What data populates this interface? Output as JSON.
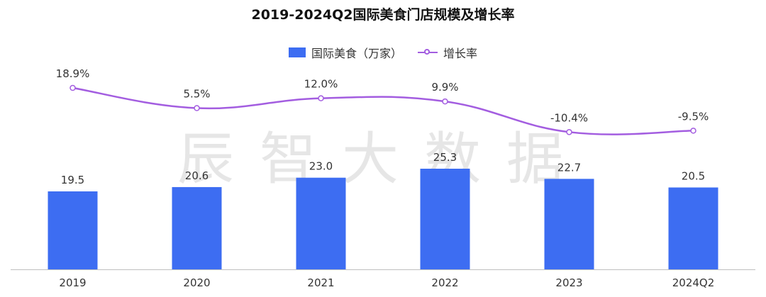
{
  "watermark": "辰智大数据",
  "colors": {
    "bar": "#3d6df2",
    "line": "#a35de0",
    "axis": "#bfbfbf"
  },
  "chart_data": {
    "type": "bar",
    "title": "2019-2024Q2国际美食门店规模及增长率",
    "categories": [
      "2019",
      "2020",
      "2021",
      "2022",
      "2023",
      "2024Q2"
    ],
    "series": [
      {
        "name": "国际美食（万家）",
        "type": "bar",
        "values": [
          19.5,
          20.6,
          23.0,
          25.3,
          22.7,
          20.5
        ],
        "labels": [
          "19.5",
          "20.6",
          "23.0",
          "25.3",
          "22.7",
          "20.5"
        ]
      },
      {
        "name": "增长率",
        "type": "line",
        "values": [
          18.9,
          5.5,
          12.0,
          9.9,
          -10.4,
          -9.5
        ],
        "labels": [
          "18.9%",
          "5.5%",
          "12.0%",
          "9.9%",
          "-10.4%",
          "-9.5%"
        ]
      }
    ],
    "legend_position": "top-center"
  }
}
